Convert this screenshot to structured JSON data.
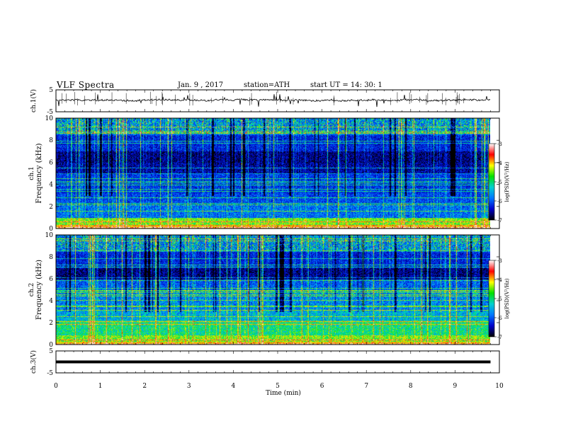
{
  "header": {
    "title": "VLF Spectra",
    "date": "Jan. 9 , 2017",
    "station": "station=ATH",
    "start": "start UT =  14: 30: 1"
  },
  "chart_data": [
    {
      "type": "line",
      "name": "waveform-ch1",
      "ylabel": "ch.1(V)",
      "ylim": [
        -5,
        5
      ],
      "y_ticks": [
        "5",
        "-5"
      ],
      "xlim": [
        0,
        10
      ],
      "trace_mean": 0,
      "trace_color": "#000000"
    },
    {
      "type": "heatmap",
      "name": "spectrogram-ch1",
      "ylabel_top": "ch.1",
      "ylabel": "Frequency (kHz)",
      "ylim": [
        0,
        10
      ],
      "y_ticks": [
        "0",
        "2",
        "4",
        "6",
        "8",
        "10"
      ],
      "xlim": [
        0,
        9.8
      ],
      "colorbar": {
        "label": "log(PSD)(V²/Hz)",
        "range": [
          -7,
          -3
        ],
        "ticks": [
          "-3",
          "-4",
          "-5",
          "-6",
          "-7"
        ],
        "colors": [
          "#000000",
          "#0000cc",
          "#0077ff",
          "#00d0d0",
          "#00e000",
          "#ffff00",
          "#ff0000",
          "#ffffff"
        ]
      }
    },
    {
      "type": "heatmap",
      "name": "spectrogram-ch2",
      "ylabel_top": "ch.2",
      "ylabel": "Frequency (kHz)",
      "ylim": [
        0,
        10
      ],
      "y_ticks": [
        "0",
        "2",
        "4",
        "6",
        "8",
        "10"
      ],
      "xlim": [
        0,
        9.8
      ],
      "colorbar": {
        "label": "log(PSD)(V²/Hz)",
        "range": [
          -7,
          -3
        ],
        "ticks": [
          "-3",
          "-4",
          "-5",
          "-6",
          "-7"
        ],
        "colors": [
          "#000000",
          "#0000cc",
          "#0077ff",
          "#00d0d0",
          "#00e000",
          "#ffff00",
          "#ff0000",
          "#ffffff"
        ]
      }
    },
    {
      "type": "line",
      "name": "waveform-ch3",
      "ylabel": "ch.3(V)",
      "ylim": [
        -5,
        5
      ],
      "y_ticks": [
        "5",
        "-5"
      ],
      "xlim": [
        0,
        10
      ],
      "trace_mean": 0,
      "trace_color": "#000000"
    }
  ],
  "x_axis": {
    "label": "Time (min)",
    "range": [
      0,
      10
    ],
    "ticks": [
      "0",
      "1",
      "2",
      "3",
      "4",
      "5",
      "6",
      "7",
      "8",
      "9",
      "10"
    ]
  }
}
